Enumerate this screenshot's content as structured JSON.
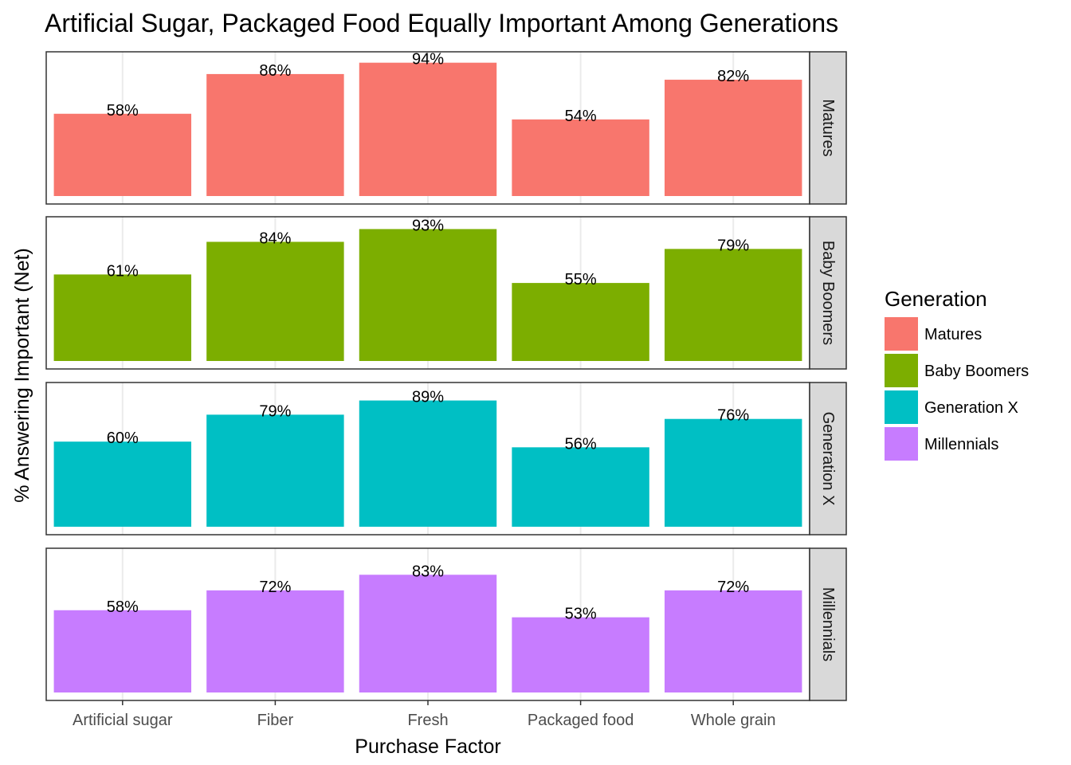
{
  "chart_data": {
    "type": "bar",
    "title": "Artificial Sugar, Packaged Food Equally Important Among Generations",
    "xlabel": "Purchase Factor",
    "ylabel": "% Answering Important (Net)",
    "categories": [
      "Artificial sugar",
      "Fiber",
      "Fresh",
      "Packaged food",
      "Whole grain"
    ],
    "ylim": [
      0,
      1
    ],
    "facet": "rows",
    "grid": true,
    "legend": {
      "title": "Generation",
      "position": "right"
    },
    "series": [
      {
        "name": "Matures",
        "color": "#F8766D",
        "values": [
          0.58,
          0.86,
          0.94,
          0.54,
          0.82
        ],
        "labels": [
          "58%",
          "86%",
          "94%",
          "54%",
          "82%"
        ]
      },
      {
        "name": "Baby Boomers",
        "color": "#7CAE00",
        "values": [
          0.61,
          0.84,
          0.93,
          0.55,
          0.79
        ],
        "labels": [
          "61%",
          "84%",
          "93%",
          "55%",
          "79%"
        ]
      },
      {
        "name": "Generation X",
        "color": "#00BFC4",
        "values": [
          0.6,
          0.79,
          0.89,
          0.56,
          0.76
        ],
        "labels": [
          "60%",
          "79%",
          "89%",
          "56%",
          "76%"
        ]
      },
      {
        "name": "Millennials",
        "color": "#C77CFF",
        "values": [
          0.58,
          0.72,
          0.83,
          0.53,
          0.72
        ],
        "labels": [
          "58%",
          "72%",
          "83%",
          "53%",
          "72%"
        ]
      }
    ]
  }
}
